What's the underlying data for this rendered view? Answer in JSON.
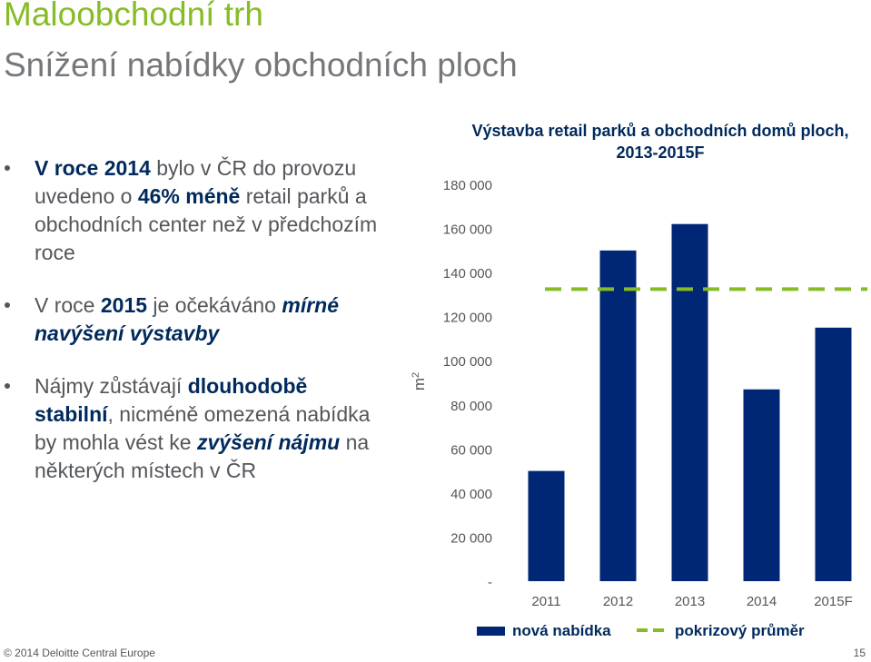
{
  "slide": {
    "title": "Maloobchodní trh",
    "subtitle": "Snížení nabídky obchodních ploch",
    "footer": "© 2014 Deloitte Central Europe",
    "page_number": "15"
  },
  "bullets": [
    {
      "parts": [
        {
          "text": "V roce 2014",
          "bold": true
        },
        {
          "text": " bylo v ČR do provozu uvedeno o "
        },
        {
          "text": "46% méně",
          "bold": true
        },
        {
          "text": " retail parků a obchodních center než v předchozím roce"
        }
      ]
    },
    {
      "parts": [
        {
          "text": "V roce "
        },
        {
          "text": "2015",
          "bold": true
        },
        {
          "text": " je očekáváno "
        },
        {
          "text": "mírné navýšení výstavby",
          "bold": true,
          "italic": true
        }
      ]
    },
    {
      "parts": [
        {
          "text": "Nájmy zůstávají "
        },
        {
          "text": "dlouhodobě stabilní",
          "bold": true
        },
        {
          "text": ", nicméně omezená nabídka by mohla vést ke "
        },
        {
          "text": "zvýšení nájmu",
          "bold": true,
          "italic": true
        },
        {
          "text": " na některých místech v ČR"
        }
      ]
    }
  ],
  "chart_data": {
    "type": "bar",
    "title": "Výstavba retail parků a obchodních domů ploch, 2013-2015F",
    "ylabel": "m2",
    "categories": [
      "2011",
      "2012",
      "2013",
      "2014",
      "2015F"
    ],
    "series": [
      {
        "name": "nová nabídka",
        "values": [
          50000,
          150000,
          162000,
          87000,
          115000
        ],
        "color": "#002776"
      }
    ],
    "reference_line": {
      "name": "pokrizový průměr",
      "value": 132500,
      "color": "#86bc25",
      "style": "dashed"
    },
    "ylim": [
      0,
      180000
    ],
    "y_ticks": [
      0,
      20000,
      40000,
      60000,
      80000,
      100000,
      120000,
      140000,
      160000,
      180000
    ],
    "y_tick_labels": [
      "-",
      "20 000",
      "40 000",
      "60 000",
      "80 000",
      "100 000",
      "120 000",
      "140 000",
      "160 000",
      "180 000"
    ],
    "grid": false,
    "legend_position": "bottom"
  }
}
